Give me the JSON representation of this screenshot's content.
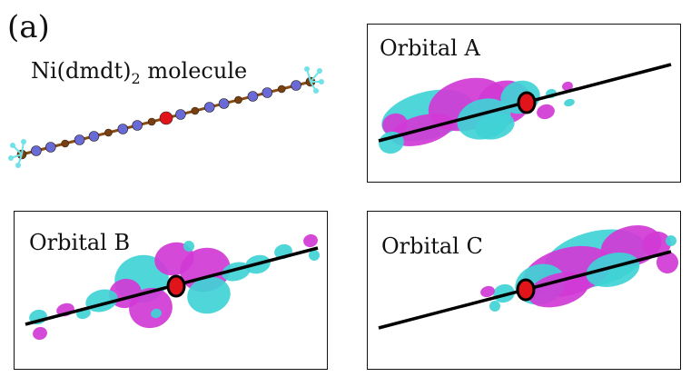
{
  "panel_label": "(a)",
  "molecule": {
    "name_prefix": "Ni(dmdt)",
    "name_subscript": "2",
    "name_suffix": " molecule"
  },
  "orbitals": [
    {
      "title": "Orbital A"
    },
    {
      "title": "Orbital B"
    },
    {
      "title": "Orbital C"
    }
  ],
  "colors": {
    "lobe_magenta": "#d13ad6",
    "lobe_cyan": "#3fd3d6",
    "center_marker": "#e0141a",
    "axis_line": "#000000",
    "bond_brown": "#8a4b12",
    "atom_blue": "#6a6ad6",
    "atom_brown": "#7a3f0c",
    "atom_hydrogen": "#6fe3e8",
    "atom_nickel": "#e0141a"
  }
}
